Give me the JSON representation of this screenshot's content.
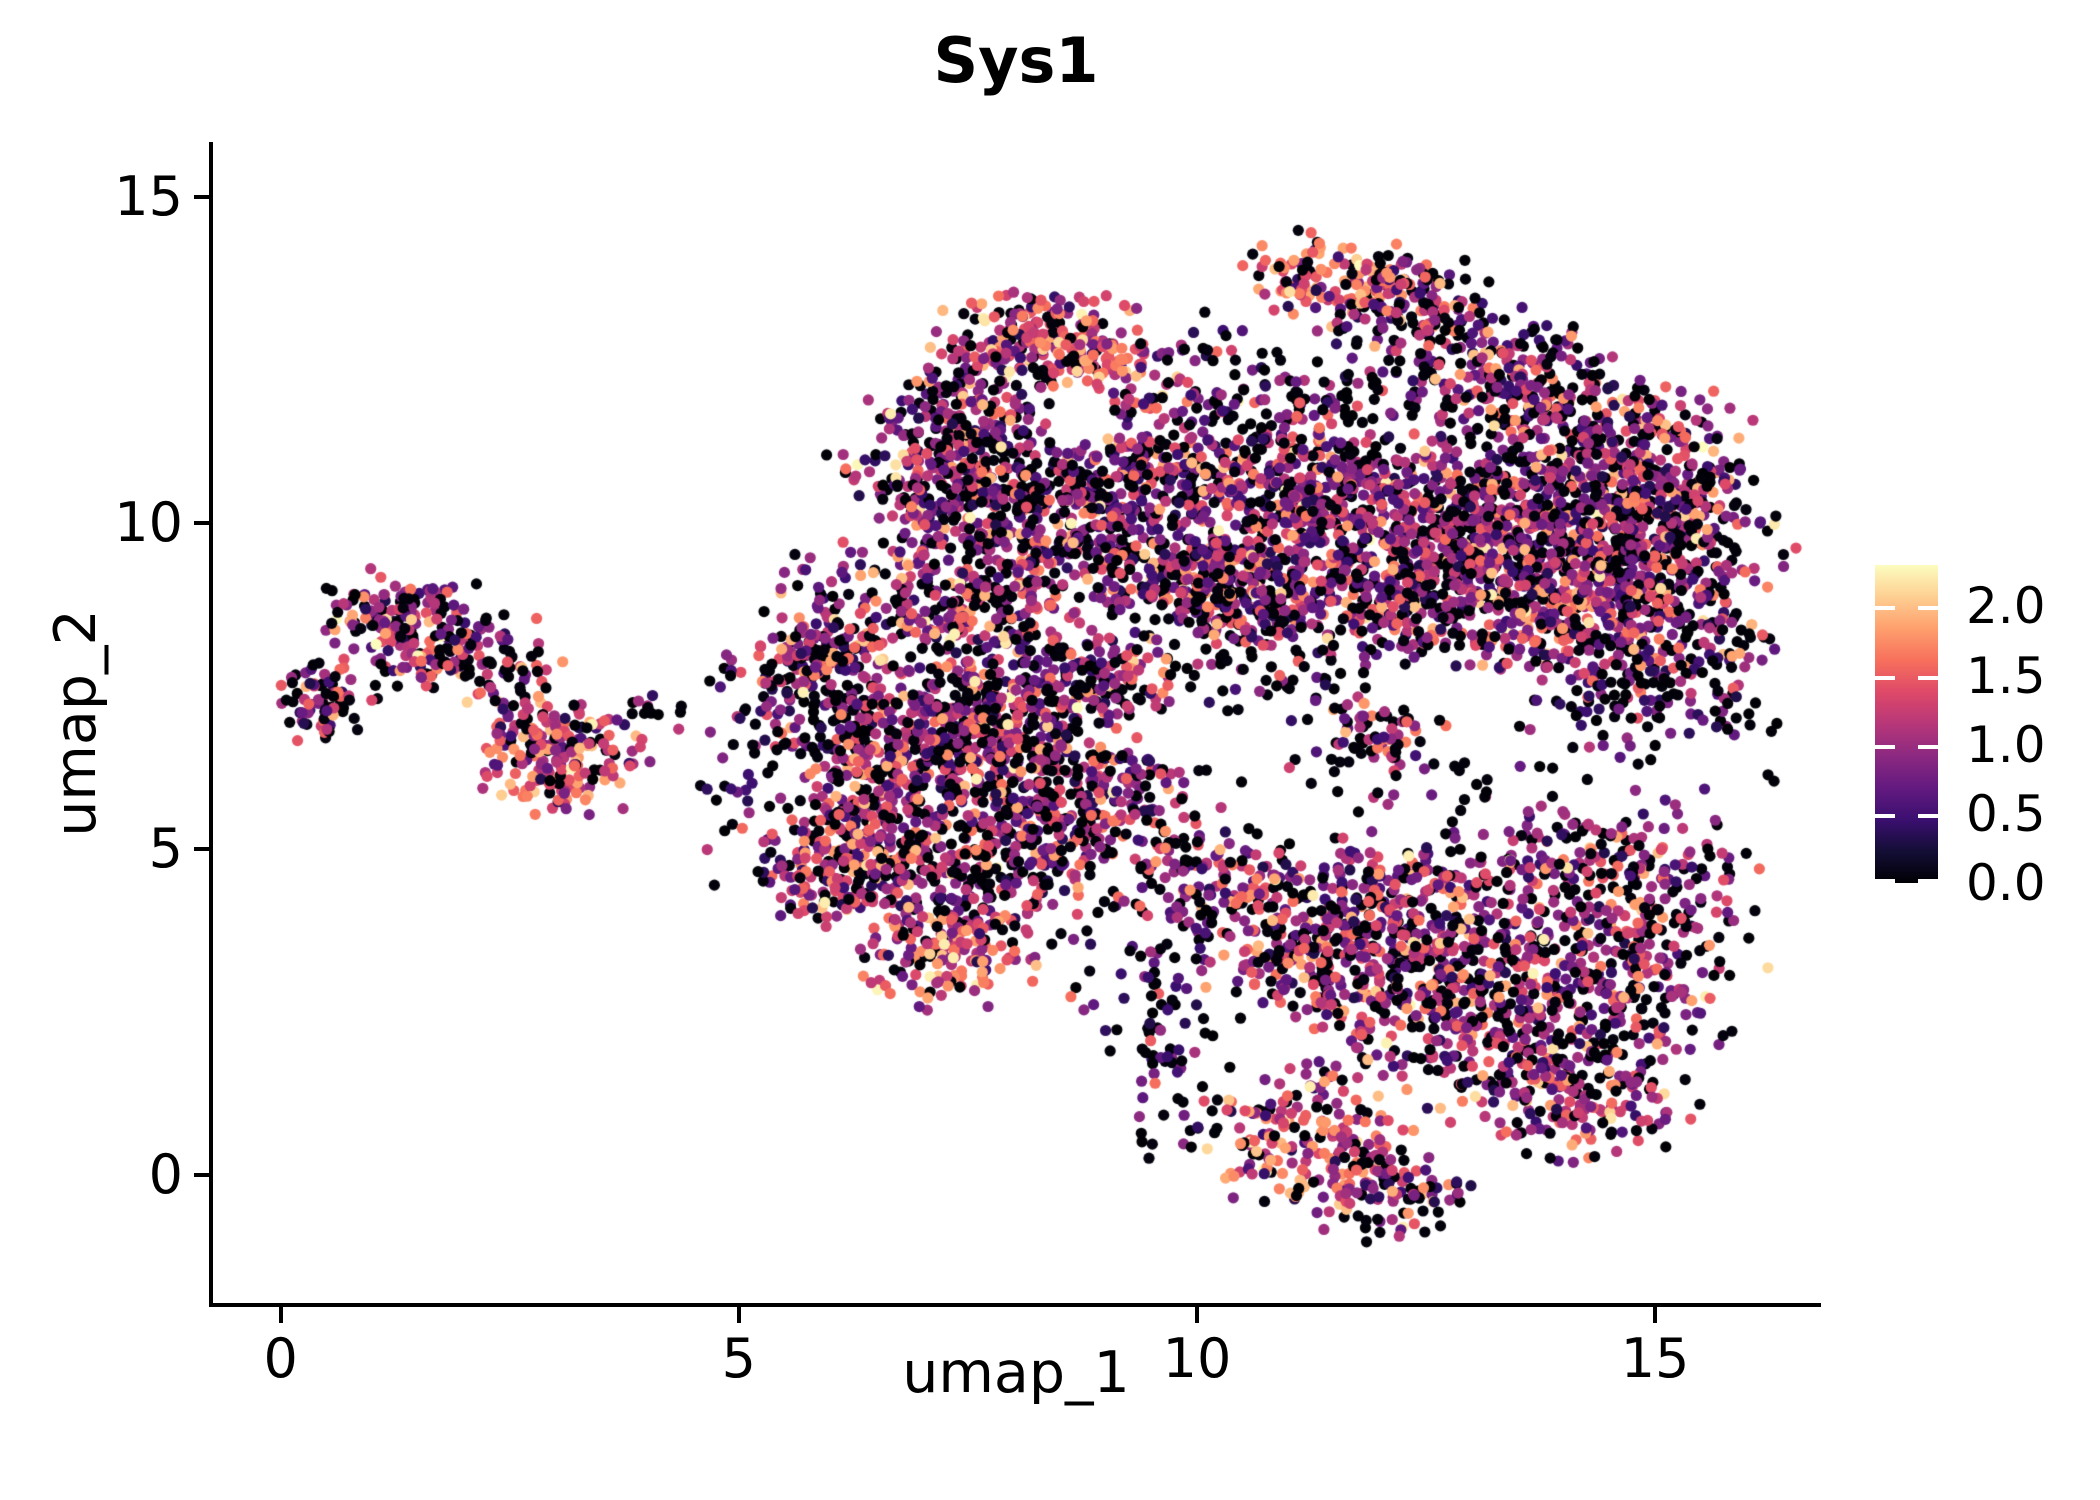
{
  "figure": {
    "background": "#ffffff",
    "text_color": "#000000",
    "axis_color": "#000000"
  },
  "chart_data": {
    "type": "scatter",
    "title": "Sys1",
    "xlabel": "umap_1",
    "ylabel": "umap_2",
    "xlim": [
      -0.75,
      16.8
    ],
    "ylim": [
      -2.0,
      15.85
    ],
    "x_ticks": [
      0,
      5,
      10,
      15
    ],
    "y_ticks": [
      0,
      5,
      10,
      15
    ],
    "grid": false,
    "point_radius_px": 5.6,
    "total_points": 9696,
    "legend": {
      "position": "right",
      "vmin": 0.0,
      "vmax": 2.3,
      "tick_values": [
        0.0,
        0.5,
        1.0,
        1.5,
        2.0
      ],
      "tick_labels": [
        "0.0",
        "0.5",
        "1.0",
        "1.5",
        "2.0"
      ],
      "tick_dash_color": "#ffffff"
    },
    "colormap": {
      "name": "magma",
      "stops": [
        [
          0.0,
          "#000004"
        ],
        [
          0.1,
          "#140e36"
        ],
        [
          0.2,
          "#3b0f70"
        ],
        [
          0.3,
          "#641a80"
        ],
        [
          0.4,
          "#8c2981"
        ],
        [
          0.5,
          "#b73779"
        ],
        [
          0.6,
          "#de4968"
        ],
        [
          0.7,
          "#f7705c"
        ],
        [
          0.8,
          "#fe9f6d"
        ],
        [
          0.9,
          "#fecf92"
        ],
        [
          1.0,
          "#fcfdbf"
        ]
      ]
    },
    "value_distributions": {
      "default": [
        [
          0.32,
          0.0,
          0.05
        ],
        [
          0.2,
          0.3,
          0.8
        ],
        [
          0.24,
          0.8,
          1.2
        ],
        [
          0.14,
          1.2,
          1.6
        ],
        [
          0.08,
          1.6,
          2.0
        ],
        [
          0.02,
          2.0,
          2.3
        ]
      ],
      "hot": [
        [
          0.15,
          0.0,
          0.05
        ],
        [
          0.1,
          0.3,
          0.8
        ],
        [
          0.18,
          0.8,
          1.2
        ],
        [
          0.27,
          1.2,
          1.6
        ],
        [
          0.24,
          1.6,
          2.0
        ],
        [
          0.06,
          2.0,
          2.3
        ]
      ],
      "dark": [
        [
          0.55,
          0.0,
          0.05
        ],
        [
          0.25,
          0.3,
          0.8
        ],
        [
          0.14,
          0.8,
          1.2
        ],
        [
          0.06,
          1.2,
          1.6
        ]
      ]
    },
    "clusters": [
      [
        1.35,
        8.55,
        0.45,
        0.4,
        150
      ],
      [
        0.45,
        7.2,
        0.28,
        0.3,
        80
      ],
      [
        2.0,
        7.95,
        0.55,
        0.35,
        110
      ],
      [
        2.85,
        6.95,
        0.4,
        0.3,
        70
      ],
      [
        3.1,
        6.25,
        0.45,
        0.35,
        130,
        "hot"
      ],
      [
        4.05,
        7.05,
        0.4,
        0.18,
        14,
        "dark"
      ],
      [
        5.8,
        7.4,
        0.45,
        0.65,
        160
      ],
      [
        6.0,
        8.25,
        0.3,
        0.3,
        60
      ],
      [
        6.9,
        6.6,
        0.6,
        0.6,
        280
      ],
      [
        7.9,
        6.9,
        0.6,
        0.55,
        250
      ],
      [
        6.3,
        5.2,
        0.55,
        0.65,
        220
      ],
      [
        6.05,
        4.6,
        0.35,
        0.45,
        90,
        "hot"
      ],
      [
        7.6,
        4.6,
        0.7,
        0.65,
        300
      ],
      [
        8.6,
        5.8,
        0.6,
        0.6,
        200
      ],
      [
        7.3,
        3.4,
        0.45,
        0.4,
        130,
        "hot"
      ],
      [
        9.3,
        5.6,
        0.5,
        0.5,
        80
      ],
      [
        8.9,
        7.6,
        0.5,
        0.4,
        140
      ],
      [
        7.3,
        8.3,
        0.8,
        0.4,
        180
      ],
      [
        5.0,
        6.6,
        0.3,
        0.7,
        25,
        "dark"
      ],
      [
        4.9,
        5.4,
        0.3,
        0.55,
        12,
        "dark"
      ],
      [
        8.3,
        12.9,
        0.55,
        0.35,
        160,
        "hot"
      ],
      [
        8.9,
        12.45,
        0.4,
        0.3,
        80,
        "hot"
      ],
      [
        7.5,
        11.9,
        0.5,
        0.5,
        150
      ],
      [
        7.3,
        10.8,
        0.6,
        0.5,
        200
      ],
      [
        8.2,
        10.2,
        0.8,
        0.5,
        300
      ],
      [
        9.3,
        10.6,
        0.5,
        0.5,
        150
      ],
      [
        9.7,
        11.7,
        0.4,
        0.6,
        80
      ],
      [
        8.2,
        9.2,
        1.3,
        0.35,
        280
      ],
      [
        10.3,
        9.0,
        0.7,
        0.45,
        180
      ],
      [
        10.2,
        11.5,
        0.3,
        0.9,
        50,
        "dark"
      ],
      [
        11.5,
        13.8,
        0.5,
        0.35,
        130,
        "hot"
      ],
      [
        12.3,
        13.4,
        0.45,
        0.35,
        110
      ],
      [
        13.1,
        12.5,
        0.55,
        0.5,
        160
      ],
      [
        13.9,
        11.6,
        0.6,
        0.55,
        200
      ],
      [
        14.9,
        10.9,
        0.6,
        0.6,
        250
      ],
      [
        11.3,
        12.0,
        0.55,
        0.7,
        90,
        "dark"
      ],
      [
        11.0,
        10.6,
        0.6,
        0.6,
        250
      ],
      [
        12.3,
        10.0,
        0.8,
        0.65,
        450
      ],
      [
        13.8,
        9.8,
        0.85,
        0.65,
        500
      ],
      [
        15.2,
        9.5,
        0.6,
        0.6,
        280
      ],
      [
        12.8,
        8.7,
        1.0,
        0.45,
        300
      ],
      [
        14.6,
        8.2,
        0.8,
        0.45,
        220
      ],
      [
        15.0,
        7.2,
        0.7,
        0.35,
        90,
        "dark"
      ],
      [
        10.9,
        8.0,
        0.5,
        0.5,
        90,
        "dark"
      ],
      [
        12.0,
        6.7,
        0.35,
        0.3,
        70
      ],
      [
        10.4,
        9.2,
        0.45,
        0.5,
        140
      ],
      [
        13.0,
        6.0,
        1.5,
        0.3,
        40,
        "dark"
      ],
      [
        13.2,
        2.7,
        1.0,
        0.95,
        600
      ],
      [
        12.1,
        4.1,
        0.75,
        0.55,
        250
      ],
      [
        11.2,
        3.4,
        0.55,
        0.55,
        180
      ],
      [
        11.2,
        0.5,
        0.6,
        0.5,
        180,
        "hot"
      ],
      [
        12.1,
        -0.3,
        0.45,
        0.35,
        100
      ],
      [
        14.4,
        4.9,
        0.8,
        0.45,
        180
      ],
      [
        10.3,
        4.5,
        0.4,
        0.4,
        90
      ],
      [
        9.8,
        2.2,
        0.3,
        1.1,
        80,
        "dark"
      ],
      [
        15.1,
        3.4,
        0.5,
        0.8,
        150
      ],
      [
        14.2,
        1.2,
        0.6,
        0.5,
        150
      ],
      [
        9.9,
        4.6,
        0.4,
        0.4,
        40
      ],
      [
        9.3,
        2.5,
        0.5,
        0.7,
        15,
        "dark"
      ]
    ]
  }
}
